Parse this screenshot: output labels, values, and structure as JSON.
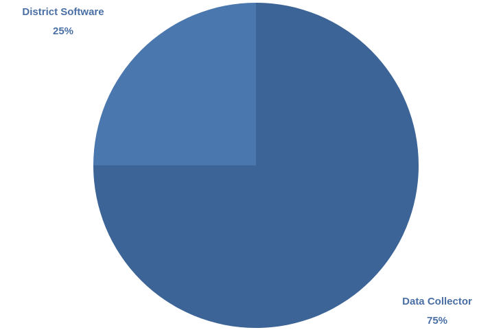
{
  "chart_data": {
    "type": "pie",
    "categories": [
      "Data Collector",
      "District Software"
    ],
    "values": [
      75,
      25
    ],
    "value_labels": [
      "75%",
      "25%"
    ],
    "colors": [
      "#3d6496",
      "#4a77ae"
    ]
  }
}
